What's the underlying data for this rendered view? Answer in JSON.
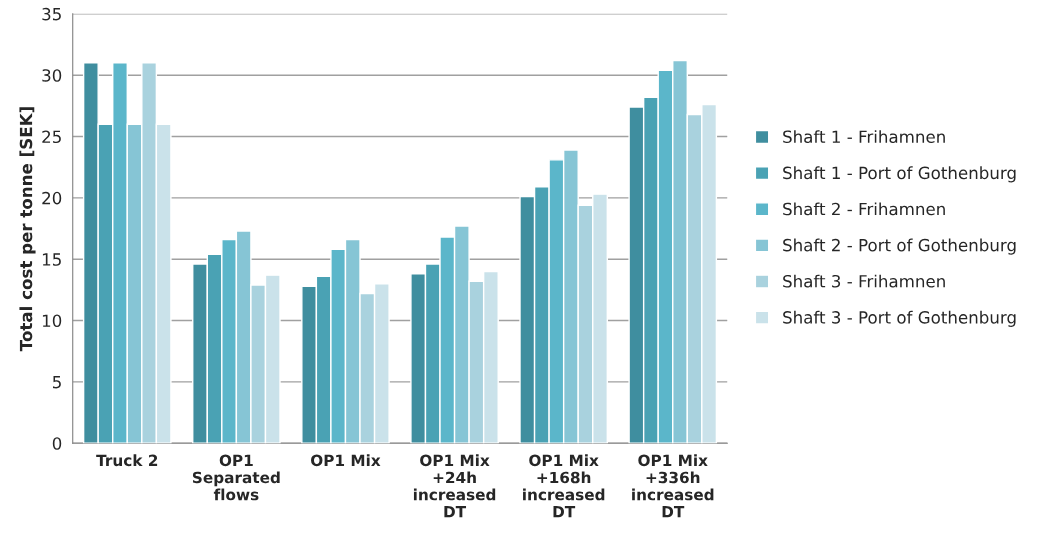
{
  "chart_data": {
    "type": "bar",
    "ylabel": "Total cost per tonne [SEK]",
    "categories": [
      "Truck 2",
      "OP1\nSeparated\nflows",
      "OP1 Mix",
      "OP1 Mix\n+24h\nincreased\nDT",
      "OP1 Mix\n+168h\nincreased\nDT",
      "OP1 Mix\n+336h\nincreased\nDT"
    ],
    "series": [
      {
        "name": "Shaft 1 - Frihamnen",
        "color": "#3f8e9f",
        "values": [
          31,
          14.6,
          12.8,
          13.8,
          20.1,
          27.4
        ]
      },
      {
        "name": "Shaft 1 - Port of Gothenburg",
        "color": "#4aa2b4",
        "values": [
          26,
          15.4,
          13.6,
          14.6,
          20.9,
          28.2
        ]
      },
      {
        "name": "Shaft 2 - Frihamnen",
        "color": "#5bb6ca",
        "values": [
          31,
          16.6,
          15.8,
          16.8,
          23.1,
          30.4
        ]
      },
      {
        "name": "Shaft 2 - Port of Gothenburg",
        "color": "#86c5d5",
        "values": [
          26,
          17.3,
          16.6,
          17.7,
          23.9,
          31.2
        ]
      },
      {
        "name": "Shaft 3 - Frihamnen",
        "color": "#a9d2de",
        "values": [
          31,
          12.9,
          12.2,
          13.2,
          19.4,
          26.8
        ]
      },
      {
        "name": "Shaft 3 - Port of Gothenburg",
        "color": "#cae2ea",
        "values": [
          26,
          13.7,
          13.0,
          14.0,
          20.3,
          27.6
        ]
      }
    ],
    "ylim": [
      0,
      35
    ],
    "yticks": [
      0,
      5,
      10,
      15,
      20,
      25,
      30,
      35
    ],
    "grid": "y",
    "legend": "right"
  }
}
